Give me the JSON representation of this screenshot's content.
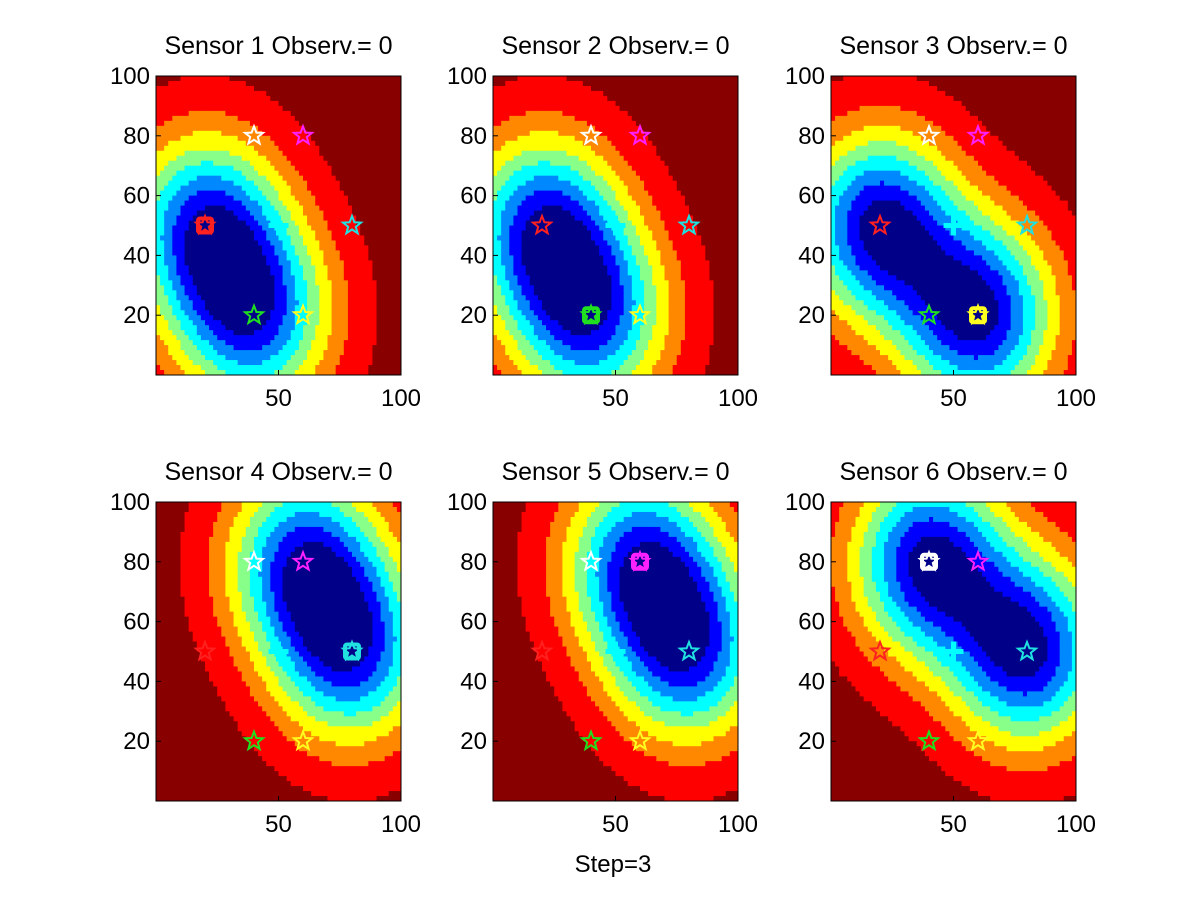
{
  "figure": {
    "xlabel": "Step=3",
    "background_color": "#ffffff"
  },
  "chart_data": [
    {
      "type": "heatmap",
      "title": "Sensor 1 Observ.= 0",
      "xlim": [
        0,
        100
      ],
      "ylim": [
        0,
        100
      ],
      "xticks": [
        50,
        100
      ],
      "yticks": [
        20,
        40,
        60,
        80,
        100
      ],
      "sensor": {
        "x": 20,
        "y": 50,
        "color": "#ff2020",
        "marker": "square"
      },
      "centers": [
        {
          "x": 20,
          "y": 50
        },
        {
          "x": 40,
          "y": 20
        }
      ]
    },
    {
      "type": "heatmap",
      "title": "Sensor 2 Observ.= 0",
      "xlim": [
        0,
        100
      ],
      "ylim": [
        0,
        100
      ],
      "xticks": [
        50,
        100
      ],
      "yticks": [
        20,
        40,
        60,
        80,
        100
      ],
      "sensor": {
        "x": 40,
        "y": 20,
        "color": "#20e020",
        "marker": "square"
      },
      "centers": [
        {
          "x": 20,
          "y": 50
        },
        {
          "x": 40,
          "y": 20
        }
      ]
    },
    {
      "type": "heatmap",
      "title": "Sensor 3 Observ.= 0",
      "xlim": [
        0,
        100
      ],
      "ylim": [
        0,
        100
      ],
      "xticks": [
        50,
        100
      ],
      "yticks": [
        20,
        40,
        60,
        80,
        100
      ],
      "sensor": {
        "x": 60,
        "y": 20,
        "color": "#ffff20",
        "marker": "square"
      },
      "centers": [
        {
          "x": 20,
          "y": 50
        },
        {
          "x": 60,
          "y": 20
        }
      ]
    },
    {
      "type": "heatmap",
      "title": "Sensor 4 Observ.= 0",
      "xlim": [
        0,
        100
      ],
      "ylim": [
        0,
        100
      ],
      "xticks": [
        50,
        100
      ],
      "yticks": [
        20,
        40,
        60,
        80,
        100
      ],
      "sensor": {
        "x": 80,
        "y": 50,
        "color": "#20e0e0",
        "marker": "square"
      },
      "centers": [
        {
          "x": 80,
          "y": 50
        },
        {
          "x": 60,
          "y": 80
        }
      ]
    },
    {
      "type": "heatmap",
      "title": "Sensor 5 Observ.= 0",
      "xlim": [
        0,
        100
      ],
      "ylim": [
        0,
        100
      ],
      "xticks": [
        50,
        100
      ],
      "yticks": [
        20,
        40,
        60,
        80,
        100
      ],
      "sensor": {
        "x": 60,
        "y": 80,
        "color": "#ff20ff",
        "marker": "square"
      },
      "centers": [
        {
          "x": 60,
          "y": 80
        },
        {
          "x": 80,
          "y": 50
        }
      ]
    },
    {
      "type": "heatmap",
      "title": "Sensor 6 Observ.= 0",
      "xlim": [
        0,
        100
      ],
      "ylim": [
        0,
        100
      ],
      "xticks": [
        50,
        100
      ],
      "yticks": [
        20,
        40,
        60,
        80,
        100
      ],
      "sensor": {
        "x": 40,
        "y": 80,
        "color": "#ffffff",
        "marker": "square"
      },
      "centers": [
        {
          "x": 40,
          "y": 80
        },
        {
          "x": 80,
          "y": 50
        }
      ]
    }
  ],
  "targets": [
    {
      "x": 40,
      "y": 80,
      "color": "#ffffff",
      "marker": "star"
    },
    {
      "x": 60,
      "y": 80,
      "color": "#ff20ff",
      "marker": "star"
    },
    {
      "x": 20,
      "y": 50,
      "color": "#ff2020",
      "marker": "star"
    },
    {
      "x": 80,
      "y": 50,
      "color": "#20e0e0",
      "marker": "star"
    },
    {
      "x": 40,
      "y": 20,
      "color": "#20e020",
      "marker": "star"
    },
    {
      "x": 60,
      "y": 20,
      "color": "#ffff20",
      "marker": "star"
    }
  ],
  "estimate": {
    "x": 50,
    "y": 50,
    "color": "#00ffff",
    "marker": "cross"
  },
  "colormap": [
    "#000088",
    "#0000ff",
    "#0088ff",
    "#00ffff",
    "#88ff88",
    "#ffff00",
    "#ff8800",
    "#ff0000",
    "#880000"
  ]
}
